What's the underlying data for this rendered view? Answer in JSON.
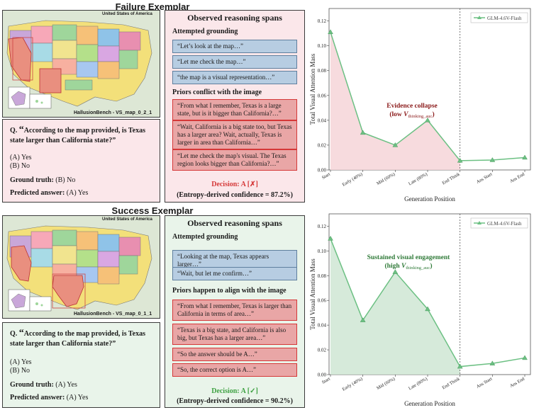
{
  "failure": {
    "title": "Failure Exemplar",
    "map": {
      "header": "United States of America",
      "caption": "HallusionBench - VS_map_0_2_1"
    },
    "question": {
      "prefix": "Q.",
      "quote_open": "“",
      "text": "According to the map provided, is Texas state larger than California state?”",
      "option_a": "(A) Yes",
      "option_b": "(B) No",
      "ground_truth_label": "Ground truth:",
      "ground_truth_value": "(B) No",
      "predicted_label": "Predicted answer:",
      "predicted_value": "(A) Yes"
    },
    "reasoning": {
      "title": "Observed reasoning spans",
      "grounding_heading": "Attempted grounding",
      "grounding_spans": [
        "“Let’s look at the map…”",
        "“Let me check the map…”",
        "“the map is a visual representation…”"
      ],
      "priors_heading": "Priors conflict with the image",
      "prior_spans": [
        "“From what I remember, Texas is a large state, but is it bigger than California?…”",
        "“Wait, California is a big state too, but Texas has a larger area? Wait, actually, Texas is larger in area than California…”",
        "“Let me check the map's visual. The Texas region looks bigger than California?…”"
      ],
      "decision": "Decision: A [✗]",
      "confidence": "(Entropy-derived confidence = 87.2%)"
    },
    "annotation": {
      "line1": "Evidence collapse",
      "line2_prefix": "(low ",
      "v": "V",
      "sub": "thinking_auc",
      "line2_suffix": ")"
    }
  },
  "success": {
    "title": "Success Exemplar",
    "map": {
      "header": "United States of America",
      "caption": "HallusionBench - VS_map_0_1_1"
    },
    "question": {
      "prefix": "Q.",
      "quote_open": "“",
      "text": "According to the map provided, is Texas state larger than California state?”",
      "option_a": "(A) Yes",
      "option_b": "(B) No",
      "ground_truth_label": "Ground truth:",
      "ground_truth_value": "(A) Yes",
      "predicted_label": "Predicted answer:",
      "predicted_value": "(A) Yes"
    },
    "reasoning": {
      "title": "Observed reasoning spans",
      "grounding_heading": "Attempted grounding",
      "grounding_spans": [
        "“Looking at the map, Texas appears larger…”",
        "“Wait, but let me confirm…”"
      ],
      "priors_heading": "Priors happen to align with the image",
      "prior_spans": [
        "“From what I remember, Texas is larger than California in terms of area…”",
        "“Texas is a big state, and California is also big, but Texas has a larger area…”",
        "“So the answer should be A…”",
        "“So, the correct option is A…”"
      ],
      "decision": "Decision: A [✓]",
      "confidence": "(Entropy-derived confidence = 90.2%)"
    },
    "annotation": {
      "line1": "Sustained visual engagement",
      "line2_prefix": "(high ",
      "v": "V",
      "sub": "thinking_auc",
      "line2_suffix": ")"
    }
  },
  "chart_data": [
    {
      "type": "line",
      "categories": [
        "Start",
        "Early (40%)",
        "Mid (60%)",
        "Late (80%)",
        "End Think",
        "Ans Start",
        "Ans End"
      ],
      "series": [
        {
          "name": "GLM-4.6V-Flash",
          "values": [
            0.111,
            0.03,
            0.02,
            0.04,
            0.0075,
            0.008,
            0.01
          ]
        }
      ],
      "ylabel": "Total Visual Attention Mass",
      "xlabel": "Generation Position",
      "yticks": [
        "0.00",
        "0.02",
        "0.04",
        "0.06",
        "0.08",
        "0.10",
        "0.12"
      ],
      "ylim": [
        0,
        0.13
      ],
      "shaded_until": "End Think",
      "divider_at": "End Think",
      "legend": "top-right",
      "line_color": "#6cc083",
      "fill_color": "#f6d5d8"
    },
    {
      "type": "line",
      "categories": [
        "Start",
        "Early (40%)",
        "Mid (60%)",
        "Late (80%)",
        "End Think",
        "Ans Start",
        "Ans End"
      ],
      "series": [
        {
          "name": "GLM-4.6V-Flash",
          "values": [
            0.11,
            0.044,
            0.083,
            0.053,
            0.0065,
            0.009,
            0.0135
          ]
        }
      ],
      "ylabel": "Total Visual Attention Mass",
      "xlabel": "Generation Position",
      "yticks": [
        "0.00",
        "0.02",
        "0.04",
        "0.06",
        "0.08",
        "0.10",
        "0.12"
      ],
      "ylim": [
        0,
        0.13
      ],
      "shaded_until": "End Think",
      "divider_at": "End Think",
      "legend": "top-right",
      "line_color": "#6cc083",
      "fill_color": "#cfe6d3"
    }
  ]
}
